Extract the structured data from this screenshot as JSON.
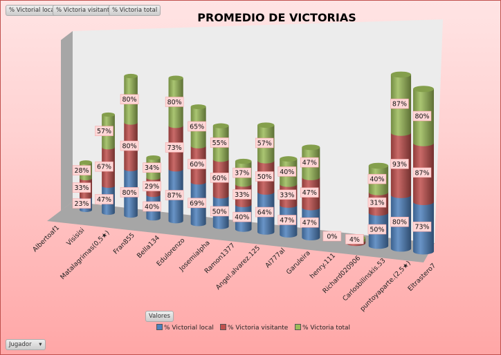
{
  "filters": {
    "buttons": [
      "% Victorial local",
      "% Victoria visitante",
      "% Victoria total"
    ],
    "valores": "Valores",
    "jugador": "Jugador"
  },
  "colors": {
    "local": "#4f81bd",
    "visitante": "#c0504d",
    "total": "#9bbb59"
  },
  "chart_data": {
    "type": "bar",
    "title": "PROMEDIO DE VICTORIAS",
    "stacked": true,
    "three_d": true,
    "xlabel": "",
    "ylabel": "",
    "categories": [
      "Albertoaf1",
      "Visisisi",
      "Matalagrimas(0,5★)",
      "Fran855",
      "Bella134",
      "Edulorenzo",
      "Josemialpha",
      "Ramon1377",
      "Angel.alvarez.125",
      "Al777al",
      "Garuleira",
      "henry.111",
      "Richard020906",
      "Carlosbilinskis.53",
      "puntoyaparte.(2,5★)",
      "Eltrastero7"
    ],
    "series": [
      {
        "name": "% Victorial local",
        "key": "local",
        "values": [
          23,
          47,
          80,
          40,
          87,
          69,
          50,
          40,
          64,
          47,
          47,
          0,
          0,
          50,
          80,
          73
        ],
        "labels": [
          "23%",
          "47%",
          "80%",
          "40%",
          "87%",
          "69%",
          "50%",
          "40%",
          "64%",
          "47%",
          "47%",
          "0%",
          "",
          "50%",
          "80%",
          "73%"
        ]
      },
      {
        "name": "% Victoria visitante",
        "key": "visitante",
        "values": [
          33,
          67,
          80,
          29,
          73,
          60,
          60,
          33,
          50,
          33,
          47,
          0,
          4,
          31,
          93,
          87
        ],
        "labels": [
          "33%",
          "67%",
          "80%",
          "29%",
          "73%",
          "60%",
          "60%",
          "33%",
          "50%",
          "33%",
          "47%",
          "",
          "",
          "31%",
          "93%",
          "87%"
        ]
      },
      {
        "name": "% Victoria total",
        "key": "total",
        "values": [
          28,
          57,
          80,
          34,
          80,
          65,
          55,
          37,
          57,
          40,
          47,
          0,
          4,
          40,
          87,
          80
        ],
        "labels": [
          "28%",
          "57%",
          "80%",
          "34%",
          "80%",
          "65%",
          "55%",
          "37%",
          "57%",
          "40%",
          "47%",
          "",
          "4%",
          "40%",
          "87%",
          "80%"
        ]
      }
    ],
    "legend": "bottom"
  }
}
